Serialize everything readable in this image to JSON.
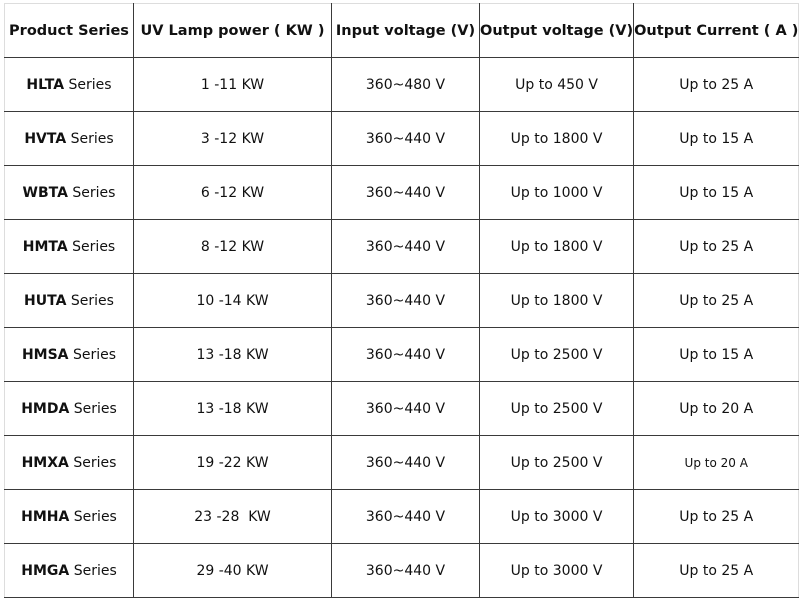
{
  "headers": [
    "Product Series",
    "UV Lamp power ( KW )",
    "Input voltage (V)",
    "Output voltage (V)",
    "Output Current ( A )"
  ],
  "rows": [
    {
      "series": "HLTA",
      "suffix": "Series",
      "power": "1 -11 KW",
      "input": "360~480 V",
      "output_v": "Up to 450 V",
      "output_a": "Up to 25 A"
    },
    {
      "series": "HVTA",
      "suffix": "Series",
      "power": "3 -12 KW",
      "input": "360~440 V",
      "output_v": "Up to 1800 V",
      "output_a": "Up to 15 A"
    },
    {
      "series": "WBTA",
      "suffix": "Series",
      "power": "6 -12 KW",
      "input": "360~440 V",
      "output_v": "Up to 1000 V",
      "output_a": "Up to 15 A"
    },
    {
      "series": "HMTA",
      "suffix": "Series",
      "power": "8 -12 KW",
      "input": "360~440 V",
      "output_v": "Up to 1800 V",
      "output_a": "Up to 25 A"
    },
    {
      "series": "HUTA",
      "suffix": "Series",
      "power": "10 -14 KW",
      "input": "360~440 V",
      "output_v": "Up to 1800 V",
      "output_a": "Up to 25 A"
    },
    {
      "series": "HMSA",
      "suffix": "Series",
      "power": "13 -18 KW",
      "input": "360~440 V",
      "output_v": "Up to 2500 V",
      "output_a": "Up to 15 A"
    },
    {
      "series": "HMDA",
      "suffix": "Series",
      "power": "13 -18 KW",
      "input": "360~440 V",
      "output_v": "Up to 2500 V",
      "output_a": "Up to 20 A"
    },
    {
      "series": "HMXA",
      "suffix": "Series",
      "power": "19 -22 KW",
      "input": "360~440 V",
      "output_v": "Up to 2500 V",
      "output_a": "Up to 20 A"
    },
    {
      "series": "HMHA",
      "suffix": "Series",
      "power": "23 -28  KW",
      "input": "360~440 V",
      "output_v": "Up to 3000 V",
      "output_a": "Up to 25 A"
    },
    {
      "series": "HMGA",
      "suffix": "Series",
      "power": "29 -40 KW",
      "input": "360~440 V",
      "output_v": "Up to 3000 V",
      "output_a": "Up to 25 A"
    }
  ]
}
